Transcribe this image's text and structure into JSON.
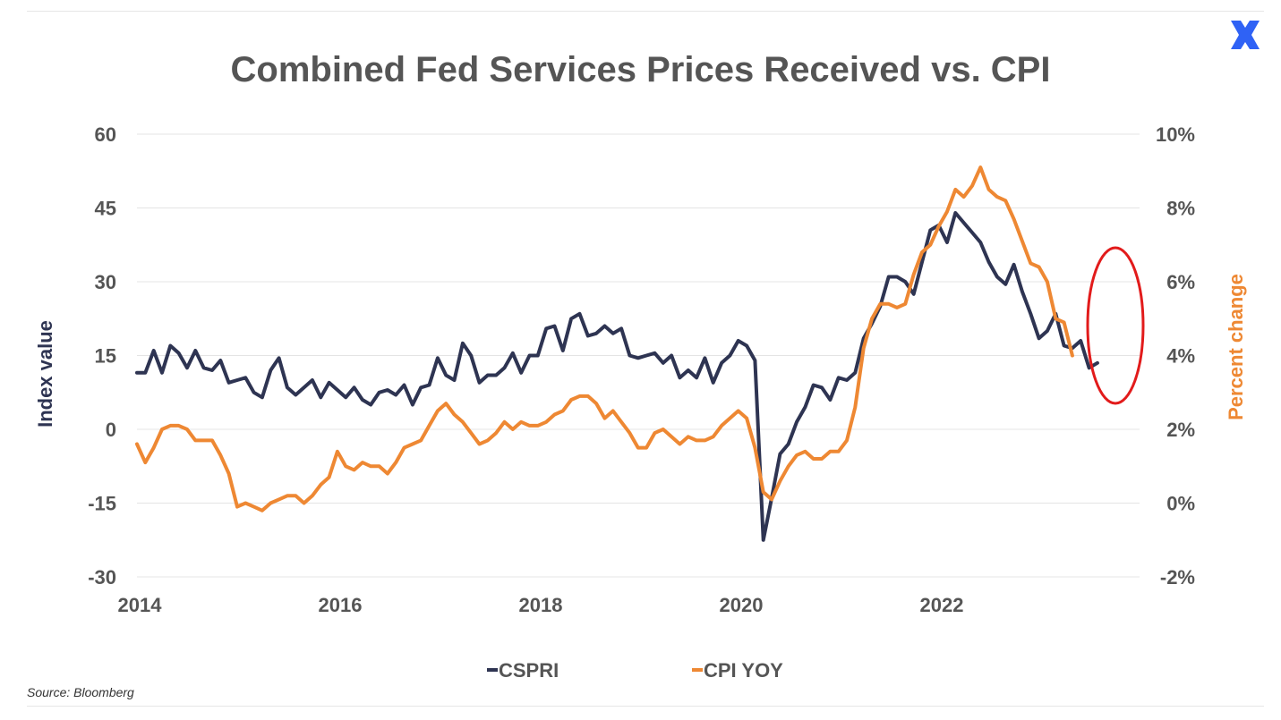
{
  "brand": {
    "logo_icon": "x-cross-logo",
    "logo_color": "#2f62f5"
  },
  "source_text": "Source:  Bloomberg",
  "chart_data": {
    "type": "line",
    "title": "Combined Fed Services Prices Received vs. CPI",
    "x_ticks": [
      "2014",
      "2016",
      "2018",
      "2020",
      "2022"
    ],
    "xlim": [
      2014.0,
      2024.0
    ],
    "left_axis": {
      "label": "Index value",
      "ylim": [
        -30,
        60
      ],
      "ticks": [
        "-30",
        "-15",
        "0",
        "15",
        "30",
        "45",
        "60"
      ],
      "color": "#2e3452"
    },
    "right_axis": {
      "label": "Percent change",
      "ylim": [
        -2,
        10
      ],
      "ticks": [
        "-2%",
        "0%",
        "2%",
        "4%",
        "6%",
        "8%",
        "10%"
      ],
      "color": "#ee8833"
    },
    "grid": "horizontal",
    "legend_position": "bottom",
    "annotation": {
      "shape": "ellipse",
      "color": "#e21b1b",
      "note": "highlights recent decline in both series"
    },
    "series": [
      {
        "name": "CSPRI",
        "axis": "left",
        "color": "#2e3452",
        "start": 2014.0,
        "step": 0.0833,
        "values": [
          11.5,
          11.5,
          16,
          11.5,
          17,
          15.5,
          12.5,
          16,
          12.5,
          12,
          14,
          9.5,
          10,
          10.5,
          7.5,
          6.5,
          12,
          14.5,
          8.5,
          7,
          8.5,
          10,
          6.5,
          9.5,
          8,
          6.5,
          8.5,
          6,
          5,
          7.5,
          8,
          7,
          9,
          5,
          8.5,
          9,
          14.5,
          11,
          10,
          17.5,
          15,
          9.5,
          11,
          11,
          12.5,
          15.5,
          11.5,
          15,
          15,
          20.5,
          21,
          16,
          22.5,
          23.5,
          19,
          19.5,
          21,
          19.5,
          20.5,
          15,
          14.5,
          15,
          15.5,
          13.5,
          15,
          10.5,
          12,
          10.5,
          14.5,
          9.5,
          13.5,
          15,
          18,
          17,
          14,
          -22.5,
          -14,
          -5,
          -3,
          1.5,
          4.5,
          9,
          8.5,
          6,
          10.5,
          10,
          11.5,
          18.5,
          21.5,
          25,
          31,
          31,
          30,
          27.5,
          34,
          40.5,
          41.5,
          38,
          44,
          42,
          40,
          38,
          34,
          31,
          29.5,
          33.5,
          28,
          23.5,
          18.5,
          20,
          23.5,
          17,
          16.5,
          18,
          12.5,
          13.5
        ]
      },
      {
        "name": "CPI YOY",
        "axis": "right",
        "color": "#ee8833",
        "start": 2014.0,
        "step": 0.0833,
        "values": [
          1.6,
          1.1,
          1.5,
          2.0,
          2.1,
          2.1,
          2.0,
          1.7,
          1.7,
          1.7,
          1.3,
          0.8,
          -0.1,
          0.0,
          -0.1,
          -0.2,
          0.0,
          0.1,
          0.2,
          0.2,
          0.0,
          0.2,
          0.5,
          0.7,
          1.4,
          1.0,
          0.9,
          1.1,
          1.0,
          1.0,
          0.8,
          1.1,
          1.5,
          1.6,
          1.7,
          2.1,
          2.5,
          2.7,
          2.4,
          2.2,
          1.9,
          1.6,
          1.7,
          1.9,
          2.2,
          2.0,
          2.2,
          2.1,
          2.1,
          2.2,
          2.4,
          2.5,
          2.8,
          2.9,
          2.9,
          2.7,
          2.3,
          2.5,
          2.2,
          1.9,
          1.5,
          1.5,
          1.9,
          2.0,
          1.8,
          1.6,
          1.8,
          1.7,
          1.7,
          1.8,
          2.1,
          2.3,
          2.5,
          2.3,
          1.5,
          0.3,
          0.1,
          0.6,
          1.0,
          1.3,
          1.4,
          1.2,
          1.2,
          1.4,
          1.4,
          1.7,
          2.6,
          4.2,
          5.0,
          5.4,
          5.4,
          5.3,
          5.4,
          6.2,
          6.8,
          7.0,
          7.5,
          7.9,
          8.5,
          8.3,
          8.6,
          9.1,
          8.5,
          8.3,
          8.2,
          7.7,
          7.1,
          6.5,
          6.4,
          6.0,
          5.0,
          4.9,
          4.0
        ]
      }
    ]
  }
}
